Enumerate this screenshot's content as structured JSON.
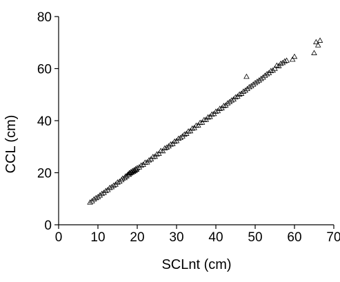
{
  "chart_data": {
    "type": "scatter",
    "title": "",
    "xlabel": "SCLnt (cm)",
    "ylabel": "CCL (cm)",
    "xlim": [
      0,
      70
    ],
    "ylim": [
      0,
      80
    ],
    "x_ticks": [
      "0",
      "10",
      "20",
      "30",
      "40",
      "50",
      "60",
      "70"
    ],
    "y_ticks": [
      "0",
      "20",
      "40",
      "60",
      "80"
    ],
    "grid": false,
    "marker": "open-triangle",
    "series": [
      {
        "points": [
          [
            8.0,
            8.6
          ],
          [
            8.5,
            9.1
          ],
          [
            9.0,
            9.8
          ],
          [
            9.5,
            10.3
          ],
          [
            10.0,
            10.7
          ],
          [
            10.5,
            11.3
          ],
          [
            11.0,
            11.9
          ],
          [
            11.5,
            12.3
          ],
          [
            12.0,
            13.0
          ],
          [
            12.5,
            13.4
          ],
          [
            13.0,
            14.2
          ],
          [
            13.5,
            14.5
          ],
          [
            14.0,
            15.1
          ],
          [
            14.5,
            15.5
          ],
          [
            15.0,
            16.3
          ],
          [
            15.5,
            16.6
          ],
          [
            16.0,
            17.2
          ],
          [
            16.3,
            17.8
          ],
          [
            16.8,
            18.0
          ],
          [
            17.0,
            18.6
          ],
          [
            17.3,
            18.7
          ],
          [
            17.6,
            19.3
          ],
          [
            17.9,
            19.3
          ],
          [
            18.0,
            19.9
          ],
          [
            18.2,
            19.8
          ],
          [
            18.4,
            20.3
          ],
          [
            18.6,
            20.1
          ],
          [
            18.8,
            20.7
          ],
          [
            19.0,
            20.4
          ],
          [
            19.2,
            21.0
          ],
          [
            19.4,
            20.8
          ],
          [
            19.6,
            21.4
          ],
          [
            19.8,
            21.2
          ],
          [
            20.0,
            21.8
          ],
          [
            20.5,
            22.1
          ],
          [
            21.0,
            22.8
          ],
          [
            21.5,
            23.1
          ],
          [
            22.0,
            23.9
          ],
          [
            22.5,
            24.0
          ],
          [
            23.0,
            24.8
          ],
          [
            23.5,
            25.2
          ],
          [
            24.0,
            26.1
          ],
          [
            24.5,
            26.2
          ],
          [
            25.0,
            27.1
          ],
          [
            25.5,
            27.3
          ],
          [
            26.0,
            28.4
          ],
          [
            26.5,
            28.3
          ],
          [
            27.0,
            29.4
          ],
          [
            27.5,
            29.7
          ],
          [
            28.0,
            30.2
          ],
          [
            28.5,
            30.9
          ],
          [
            29.0,
            31.1
          ],
          [
            29.5,
            32.0
          ],
          [
            30.0,
            32.2
          ],
          [
            30.5,
            33.1
          ],
          [
            31.0,
            33.4
          ],
          [
            31.5,
            34.0
          ],
          [
            32.0,
            34.7
          ],
          [
            32.5,
            35.0
          ],
          [
            33.0,
            35.9
          ],
          [
            33.5,
            36.0
          ],
          [
            34.0,
            37.0
          ],
          [
            34.5,
            37.2
          ],
          [
            35.0,
            38.1
          ],
          [
            35.5,
            38.2
          ],
          [
            36.0,
            39.2
          ],
          [
            36.5,
            39.3
          ],
          [
            37.0,
            40.3
          ],
          [
            37.5,
            40.4
          ],
          [
            38.0,
            41.3
          ],
          [
            38.5,
            41.5
          ],
          [
            39.0,
            42.4
          ],
          [
            39.5,
            42.6
          ],
          [
            40.0,
            43.5
          ],
          [
            40.5,
            43.7
          ],
          [
            41.0,
            44.6
          ],
          [
            41.5,
            44.8
          ],
          [
            42.0,
            45.7
          ],
          [
            42.5,
            45.9
          ],
          [
            43.0,
            46.7
          ],
          [
            43.5,
            47.2
          ],
          [
            44.0,
            47.8
          ],
          [
            44.5,
            48.2
          ],
          [
            45.0,
            49.0
          ],
          [
            45.5,
            49.3
          ],
          [
            46.0,
            50.1
          ],
          [
            46.5,
            50.4
          ],
          [
            47.0,
            51.2
          ],
          [
            47.5,
            51.6
          ],
          [
            47.8,
            56.9
          ],
          [
            48.0,
            52.2
          ],
          [
            48.5,
            52.9
          ],
          [
            49.0,
            53.3
          ],
          [
            49.5,
            53.9
          ],
          [
            50.0,
            54.5
          ],
          [
            50.5,
            55.0
          ],
          [
            51.0,
            55.5
          ],
          [
            51.5,
            56.1
          ],
          [
            52.0,
            56.6
          ],
          [
            52.5,
            57.3
          ],
          [
            53.0,
            57.9
          ],
          [
            53.5,
            58.3
          ],
          [
            54.0,
            59.1
          ],
          [
            54.5,
            59.3
          ],
          [
            55.0,
            60.0
          ],
          [
            55.5,
            61.2
          ],
          [
            56.0,
            61.0
          ],
          [
            56.5,
            61.9
          ],
          [
            57.0,
            62.2
          ],
          [
            57.5,
            62.8
          ],
          [
            58.0,
            63.1
          ],
          [
            59.5,
            63.5
          ],
          [
            60.0,
            64.6
          ],
          [
            65.0,
            66.0
          ],
          [
            65.5,
            70.2
          ],
          [
            66.0,
            69.0
          ],
          [
            66.5,
            70.8
          ]
        ]
      }
    ]
  }
}
